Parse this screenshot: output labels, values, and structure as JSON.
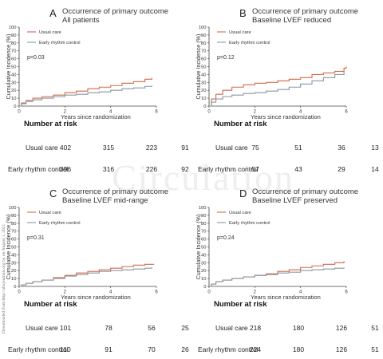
{
  "side_note": "Downloaded from http://ahajournals.org by on August 1, 2021",
  "watermark": "Circulation",
  "chart_data": [
    {
      "type": "line",
      "letter": "A",
      "title": "Occurrence of primary outcome",
      "subtitle": "All patients",
      "p_value": "p=0.03",
      "xlabel": "Years since randomization",
      "ylabel": "Cumulative Incidence (%)",
      "xlim": [
        0,
        6
      ],
      "ylim": [
        0,
        100
      ],
      "xticks": [
        "0",
        "2",
        "4",
        "6"
      ],
      "yticks": [
        "0",
        "10",
        "20",
        "30",
        "40",
        "50",
        "60",
        "70",
        "80",
        "90",
        "100"
      ],
      "series": [
        {
          "name": "Usual care",
          "color": "#d2694a",
          "x": [
            0,
            0.1,
            0.3,
            0.6,
            1,
            1.5,
            2,
            2.5,
            3,
            3.5,
            4,
            4.5,
            5,
            5.5,
            5.8
          ],
          "y": [
            0,
            4,
            7,
            10,
            12,
            14,
            17,
            19,
            22,
            24,
            26,
            29,
            31,
            34,
            36
          ]
        },
        {
          "name": "Early rhythm control",
          "color": "#8a96a2",
          "x": [
            0,
            0.1,
            0.3,
            0.6,
            1,
            1.5,
            2,
            2.5,
            3,
            3.5,
            4,
            4.5,
            5,
            5.5,
            5.8
          ],
          "y": [
            0,
            3,
            6,
            8,
            10,
            12,
            14,
            15,
            17,
            18,
            20,
            22,
            23,
            25,
            26
          ]
        }
      ],
      "risk_title": "Number at risk",
      "risk": [
        {
          "label": "Usual care",
          "values": [
            "402",
            "315",
            "223",
            "91"
          ]
        },
        {
          "label": "Early rhythm control",
          "values": [
            "396",
            "316",
            "226",
            "92"
          ]
        }
      ]
    },
    {
      "type": "line",
      "letter": "B",
      "title": "Occurrence of primary outcome",
      "subtitle": "Baseline LVEF reduced",
      "p_value": "p=0.12",
      "xlabel": "Years since randomization",
      "ylabel": "Cumulative Incidence (%)",
      "xlim": [
        0,
        6
      ],
      "ylim": [
        0,
        100
      ],
      "xticks": [
        "0",
        "2",
        "4",
        "6"
      ],
      "yticks": [
        "0",
        "10",
        "20",
        "30",
        "40",
        "50",
        "60",
        "70",
        "80",
        "90",
        "100"
      ],
      "series": [
        {
          "name": "Usual care",
          "color": "#d2694a",
          "x": [
            0,
            0.1,
            0.3,
            0.6,
            1,
            1.5,
            2,
            2.5,
            3,
            3.5,
            4,
            4.5,
            5,
            5.5,
            5.9,
            6
          ],
          "y": [
            0,
            9,
            15,
            20,
            24,
            27,
            29,
            30,
            32,
            34,
            36,
            40,
            42,
            44,
            48,
            50
          ]
        },
        {
          "name": "Early rhythm control",
          "color": "#8a96a2",
          "x": [
            0,
            0.1,
            0.3,
            0.6,
            1,
            1.5,
            2,
            2.5,
            3,
            3.5,
            4,
            4.5,
            5,
            5.5,
            5.9
          ],
          "y": [
            0,
            5,
            9,
            12,
            14,
            16,
            17,
            19,
            21,
            24,
            28,
            32,
            36,
            40,
            44
          ]
        }
      ],
      "risk_title": "Number at risk",
      "risk": [
        {
          "label": "Usual care",
          "values": [
            "75",
            "51",
            "36",
            "13"
          ]
        },
        {
          "label": "Early rhythm control",
          "values": [
            "57",
            "43",
            "29",
            "14"
          ]
        }
      ]
    },
    {
      "type": "line",
      "letter": "C",
      "title": "Occurrence of primary outcome",
      "subtitle": "Baseline LVEF mid-range",
      "p_value": "p=0.31",
      "xlabel": "Years since randomization",
      "ylabel": "Cumulative Incidence (%)",
      "xlim": [
        0,
        6
      ],
      "ylim": [
        0,
        100
      ],
      "xticks": [
        "0",
        "2",
        "4",
        "6"
      ],
      "yticks": [
        "0",
        "10",
        "20",
        "30",
        "40",
        "50",
        "60",
        "70",
        "80",
        "90",
        "100"
      ],
      "series": [
        {
          "name": "Usual care",
          "color": "#d2694a",
          "x": [
            0,
            0.1,
            0.3,
            0.6,
            1,
            1.5,
            2,
            2.5,
            3,
            3.5,
            4,
            4.5,
            5,
            5.5,
            5.9
          ],
          "y": [
            0,
            2,
            4,
            6,
            8,
            11,
            14,
            17,
            19,
            21,
            23,
            25,
            27,
            28,
            28
          ]
        },
        {
          "name": "Early rhythm control",
          "color": "#8a96a2",
          "x": [
            0,
            0.1,
            0.3,
            0.6,
            1,
            1.5,
            2,
            2.5,
            3,
            3.5,
            4,
            4.5,
            5,
            5.5,
            5.8
          ],
          "y": [
            0,
            2,
            4,
            6,
            8,
            10,
            13,
            15,
            17,
            19,
            20,
            21,
            22,
            23,
            24
          ]
        }
      ],
      "risk_title": "Number at risk",
      "risk": [
        {
          "label": "Usual care",
          "values": [
            "101",
            "78",
            "56",
            "25"
          ]
        },
        {
          "label": "Early rhythm control",
          "values": [
            "110",
            "91",
            "70",
            "26"
          ]
        }
      ]
    },
    {
      "type": "line",
      "letter": "D",
      "title": "Occurrence of primary outcome",
      "subtitle": "Baseline LVEF preserved",
      "p_value": "p=0.24",
      "xlabel": "Years since randomization",
      "ylabel": "Cumulative Incidence (%)",
      "xlim": [
        0,
        6
      ],
      "ylim": [
        0,
        100
      ],
      "xticks": [
        "0",
        "2",
        "4",
        "6"
      ],
      "yticks": [
        "0",
        "10",
        "20",
        "30",
        "40",
        "50",
        "60",
        "70",
        "80",
        "90",
        "100"
      ],
      "series": [
        {
          "name": "Usual care",
          "color": "#d2694a",
          "x": [
            0,
            0.1,
            0.3,
            0.6,
            1,
            1.5,
            2,
            2.5,
            3,
            3.5,
            4,
            4.5,
            5,
            5.5,
            5.9
          ],
          "y": [
            0,
            3,
            6,
            8,
            10,
            12,
            14,
            16,
            19,
            21,
            24,
            26,
            28,
            30,
            32
          ]
        },
        {
          "name": "Early rhythm control",
          "color": "#8a96a2",
          "x": [
            0,
            0.1,
            0.3,
            0.6,
            1,
            1.5,
            2,
            2.5,
            3,
            3.5,
            4,
            4.5,
            5,
            5.5,
            5.9
          ],
          "y": [
            0,
            3,
            6,
            8,
            10,
            12,
            14,
            15,
            17,
            18,
            20,
            21,
            22,
            23,
            24
          ]
        }
      ],
      "risk_title": "Number at risk",
      "risk": [
        {
          "label": "Usual care",
          "values": [
            "218",
            "180",
            "126",
            "51"
          ]
        },
        {
          "label": "Early rhythm control",
          "values": [
            "224",
            "180",
            "126",
            "51"
          ]
        }
      ]
    }
  ]
}
